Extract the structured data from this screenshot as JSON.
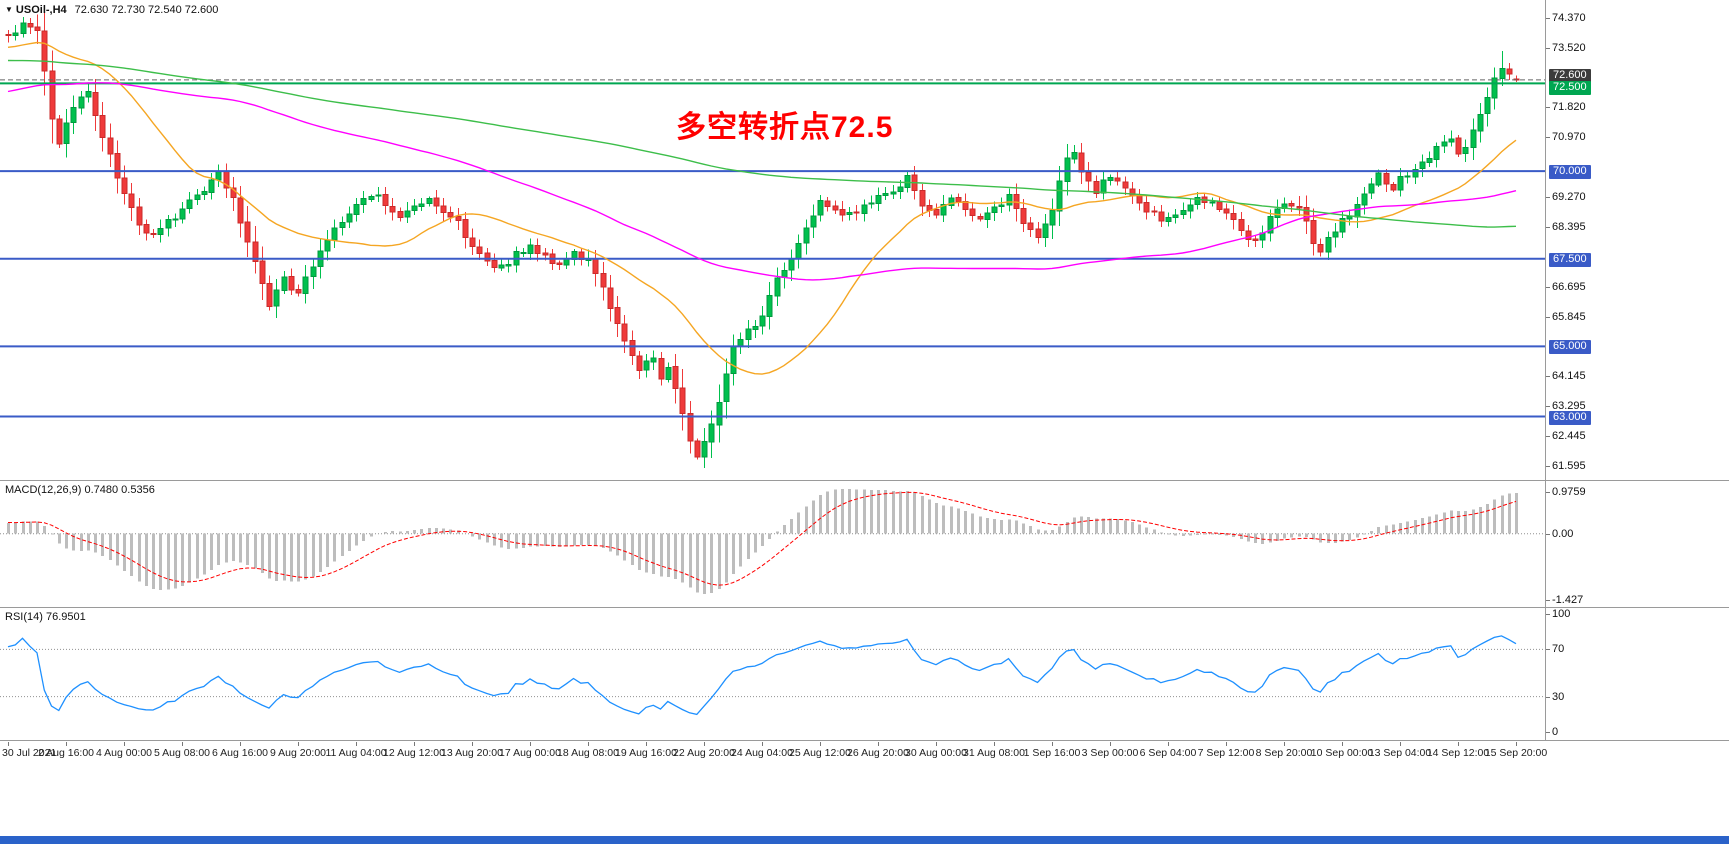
{
  "header": {
    "dropdown_icon": "▼",
    "symbol_tf": "USOil-,H4",
    "ohlc": "72.630 72.730 72.540 72.600"
  },
  "annotation": {
    "text": "多空转折点72.5",
    "color": "#FF0000"
  },
  "chart_data": {
    "type": "candlestick",
    "symbol": "USOil-",
    "timeframe": "H4",
    "bars_visible": 209,
    "prehistory": 200,
    "seed": 20210915,
    "price_range": [
      61.19,
      74.88
    ],
    "price_axis_labels": [
      {
        "text": "74.370",
        "price": 74.37
      },
      {
        "text": "73.520",
        "price": 73.52
      },
      {
        "text": "71.820",
        "price": 71.82
      },
      {
        "text": "70.970",
        "price": 70.97
      },
      {
        "text": "69.270",
        "price": 69.27
      },
      {
        "text": "68.395",
        "price": 68.395
      },
      {
        "text": "66.695",
        "price": 66.695
      },
      {
        "text": "65.845",
        "price": 65.845
      },
      {
        "text": "64.145",
        "price": 64.145
      },
      {
        "text": "63.295",
        "price": 63.295
      },
      {
        "text": "62.445",
        "price": 62.445
      },
      {
        "text": "61.595",
        "price": 61.595
      }
    ],
    "price_badges": [
      {
        "text": "72.600",
        "price": 72.6,
        "bg": "#3C3C3C",
        "shift": -5
      },
      {
        "text": "72.500",
        "price": 72.5,
        "bg": "#00A651",
        "shift": 4
      },
      {
        "text": "70.000",
        "price": 70.0,
        "bg": "#3A5BC7",
        "shift": 0
      },
      {
        "text": "67.500",
        "price": 67.5,
        "bg": "#3A5BC7",
        "shift": 0
      },
      {
        "text": "65.000",
        "price": 65.0,
        "bg": "#3A5BC7",
        "shift": 0
      },
      {
        "text": "63.000",
        "price": 63.0,
        "bg": "#3A5BC7",
        "shift": 0
      }
    ],
    "hlines": [
      {
        "price": 72.5,
        "color": "#00A651",
        "width": 2
      },
      {
        "price": 72.6,
        "color": "#666666",
        "width": 1,
        "dash": true
      },
      {
        "price": 70.0,
        "color": "#3A5BC7",
        "width": 2
      },
      {
        "price": 67.5,
        "color": "#3A5BC7",
        "width": 2
      },
      {
        "price": 65.0,
        "color": "#3A5BC7",
        "width": 2
      },
      {
        "price": 63.0,
        "color": "#3A5BC7",
        "width": 2
      }
    ],
    "mas": [
      {
        "period": 21,
        "color": "#F5A623",
        "name": "ma-fast-orange"
      },
      {
        "period": 80,
        "color": "#FF00FF",
        "name": "ma-mid-magenta"
      },
      {
        "period": 200,
        "color": "#3DBE4A",
        "name": "ma-slow-green"
      }
    ],
    "macd": {
      "label": "MACD(12,26,9) 0.7480 0.5356",
      "fast": 12,
      "slow": 26,
      "signal": 9,
      "axis_top": "0.9759",
      "axis_zero": "0.00",
      "axis_bottom": "-1.427",
      "scale_top": 0.9759,
      "scale_bottom": 1.427
    },
    "rsi": {
      "label": "RSI(14) 76.9501",
      "period": 14,
      "levels": [
        100,
        70,
        30,
        0
      ],
      "level_lines": [
        70,
        30
      ]
    },
    "time_labels": [
      "30 Jul 2021",
      "2 Aug 16:00",
      "4 Aug 00:00",
      "5 Aug 08:00",
      "6 Aug 16:00",
      "9 Aug 20:00",
      "11 Aug 04:00",
      "12 Aug 12:00",
      "13 Aug 20:00",
      "17 Aug 00:00",
      "18 Aug 08:00",
      "19 Aug 16:00",
      "22 Aug 20:00",
      "24 Aug 04:00",
      "25 Aug 12:00",
      "26 Aug 20:00",
      "30 Aug 00:00",
      "31 Aug 08:00",
      "1 Sep 16:00",
      "3 Sep 00:00",
      "6 Sep 04:00",
      "7 Sep 12:00",
      "8 Sep 20:00",
      "10 Sep 00:00",
      "13 Sep 04:00",
      "14 Sep 12:00",
      "15 Sep 20:00"
    ],
    "price_path": [
      [
        -200,
        74.6
      ],
      [
        -160,
        74.9
      ],
      [
        -120,
        74.1
      ],
      [
        -95,
        71.3
      ],
      [
        -80,
        70.7
      ],
      [
        -60,
        71.2
      ],
      [
        -40,
        72.3
      ],
      [
        -20,
        73.3
      ],
      [
        -5,
        73.6
      ],
      [
        0,
        73.8
      ],
      [
        2,
        74.15
      ],
      [
        4,
        73.9
      ],
      [
        5,
        72.9
      ],
      [
        6,
        71.5
      ],
      [
        7,
        70.75
      ],
      [
        9,
        71.9
      ],
      [
        11,
        72.3
      ],
      [
        12,
        71.7
      ],
      [
        14,
        70.4
      ],
      [
        16,
        69.3
      ],
      [
        18,
        68.4
      ],
      [
        20,
        68.15
      ],
      [
        22,
        68.6
      ],
      [
        24,
        68.9
      ],
      [
        26,
        69.3
      ],
      [
        28,
        69.7
      ],
      [
        29,
        69.9
      ],
      [
        31,
        69.2
      ],
      [
        33,
        68.0
      ],
      [
        35,
        66.8
      ],
      [
        36,
        66.15
      ],
      [
        38,
        66.9
      ],
      [
        40,
        66.5
      ],
      [
        42,
        67.3
      ],
      [
        44,
        68.1
      ],
      [
        46,
        68.6
      ],
      [
        48,
        69.0
      ],
      [
        50,
        69.4
      ],
      [
        52,
        69.1
      ],
      [
        54,
        68.6
      ],
      [
        56,
        68.95
      ],
      [
        58,
        69.2
      ],
      [
        60,
        68.8
      ],
      [
        62,
        68.5
      ],
      [
        64,
        67.9
      ],
      [
        66,
        67.5
      ],
      [
        68,
        67.2
      ],
      [
        70,
        67.65
      ],
      [
        72,
        67.8
      ],
      [
        74,
        67.5
      ],
      [
        76,
        67.3
      ],
      [
        78,
        67.6
      ],
      [
        80,
        67.4
      ],
      [
        82,
        66.6
      ],
      [
        84,
        65.6
      ],
      [
        86,
        64.8
      ],
      [
        87,
        64.35
      ],
      [
        89,
        64.6
      ],
      [
        90,
        63.95
      ],
      [
        91,
        64.4
      ],
      [
        93,
        63.2
      ],
      [
        94,
        62.3
      ],
      [
        95,
        61.95
      ],
      [
        96,
        62.3
      ],
      [
        97,
        62.8
      ],
      [
        98,
        63.5
      ],
      [
        100,
        64.9
      ],
      [
        102,
        65.4
      ],
      [
        104,
        65.85
      ],
      [
        106,
        66.9
      ],
      [
        108,
        67.5
      ],
      [
        110,
        68.3
      ],
      [
        112,
        69.1
      ],
      [
        114,
        69.0
      ],
      [
        116,
        68.7
      ],
      [
        118,
        69.0
      ],
      [
        120,
        69.25
      ],
      [
        122,
        69.5
      ],
      [
        124,
        69.8
      ],
      [
        126,
        69.1
      ],
      [
        128,
        68.75
      ],
      [
        130,
        69.2
      ],
      [
        132,
        69.0
      ],
      [
        134,
        68.65
      ],
      [
        136,
        69.0
      ],
      [
        138,
        69.3
      ],
      [
        140,
        68.45
      ],
      [
        142,
        68.2
      ],
      [
        144,
        68.9
      ],
      [
        146,
        70.3
      ],
      [
        147,
        70.55
      ],
      [
        148,
        70.05
      ],
      [
        150,
        69.4
      ],
      [
        152,
        69.9
      ],
      [
        154,
        69.6
      ],
      [
        156,
        69.1
      ],
      [
        158,
        68.75
      ],
      [
        160,
        68.6
      ],
      [
        162,
        68.9
      ],
      [
        164,
        69.2
      ],
      [
        166,
        69.0
      ],
      [
        168,
        68.85
      ],
      [
        170,
        68.25
      ],
      [
        172,
        68.05
      ],
      [
        174,
        68.6
      ],
      [
        176,
        69.1
      ],
      [
        178,
        69.0
      ],
      [
        180,
        68.0
      ],
      [
        181,
        67.75
      ],
      [
        183,
        68.25
      ],
      [
        185,
        68.8
      ],
      [
        187,
        69.4
      ],
      [
        189,
        69.85
      ],
      [
        191,
        69.55
      ],
      [
        193,
        69.9
      ],
      [
        195,
        70.3
      ],
      [
        197,
        70.6
      ],
      [
        199,
        70.85
      ],
      [
        200,
        70.45
      ],
      [
        201,
        70.7
      ],
      [
        202,
        71.2
      ],
      [
        203,
        71.7
      ],
      [
        204,
        72.2
      ],
      [
        205,
        72.6
      ],
      [
        206,
        73.05
      ],
      [
        207,
        72.85
      ],
      [
        208,
        72.6
      ]
    ],
    "bar_overrides": [
      {
        "bar": 206,
        "high": 73.43
      },
      {
        "bar": 208,
        "open": 72.63,
        "high": 72.73,
        "low": 72.54,
        "close": 72.6
      }
    ],
    "colors": {
      "up": "#00C04D",
      "up_border": "#009A3E",
      "down": "#EF3A3A",
      "down_border": "#C92B2B",
      "macd_hist": "#BDBDBD",
      "macd_signal": "#FF0000",
      "rsi_line": "#1E90FF",
      "level_dotted": "#909090",
      "bottom_bar": "#2A62C9"
    }
  }
}
